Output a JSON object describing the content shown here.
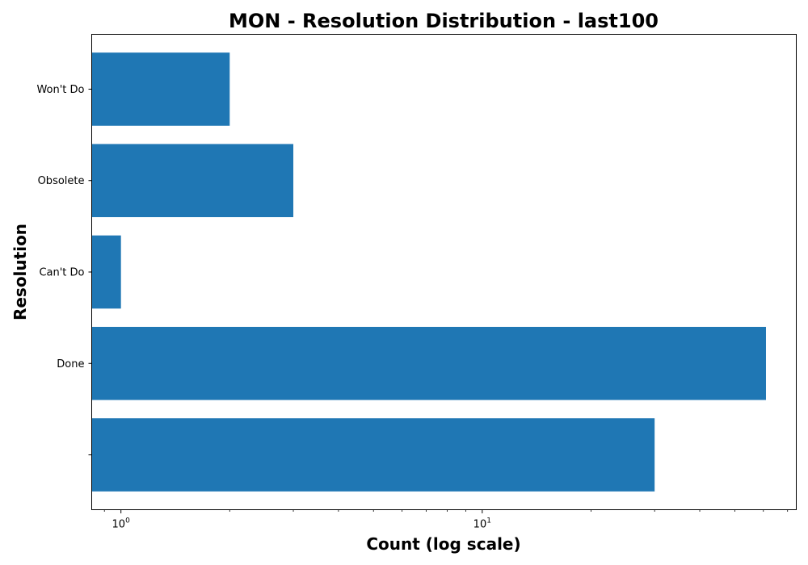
{
  "chart_data": {
    "type": "bar",
    "orientation": "horizontal",
    "title": "MON - Resolution Distribution - last100",
    "xlabel": "Count (log scale)",
    "ylabel": "Resolution",
    "x_scale": "log",
    "xlim": [
      0.83,
      74
    ],
    "x_major_ticks": [
      {
        "value": 1,
        "base": "10",
        "exp": "0"
      },
      {
        "value": 10,
        "base": "10",
        "exp": "1"
      }
    ],
    "categories": [
      "",
      "Done",
      "Can't Do",
      "Obsolete",
      "Won't Do"
    ],
    "values": [
      30,
      61,
      1,
      3,
      2
    ],
    "bar_color": "#1f77b4",
    "grid": false,
    "legend": "none"
  }
}
